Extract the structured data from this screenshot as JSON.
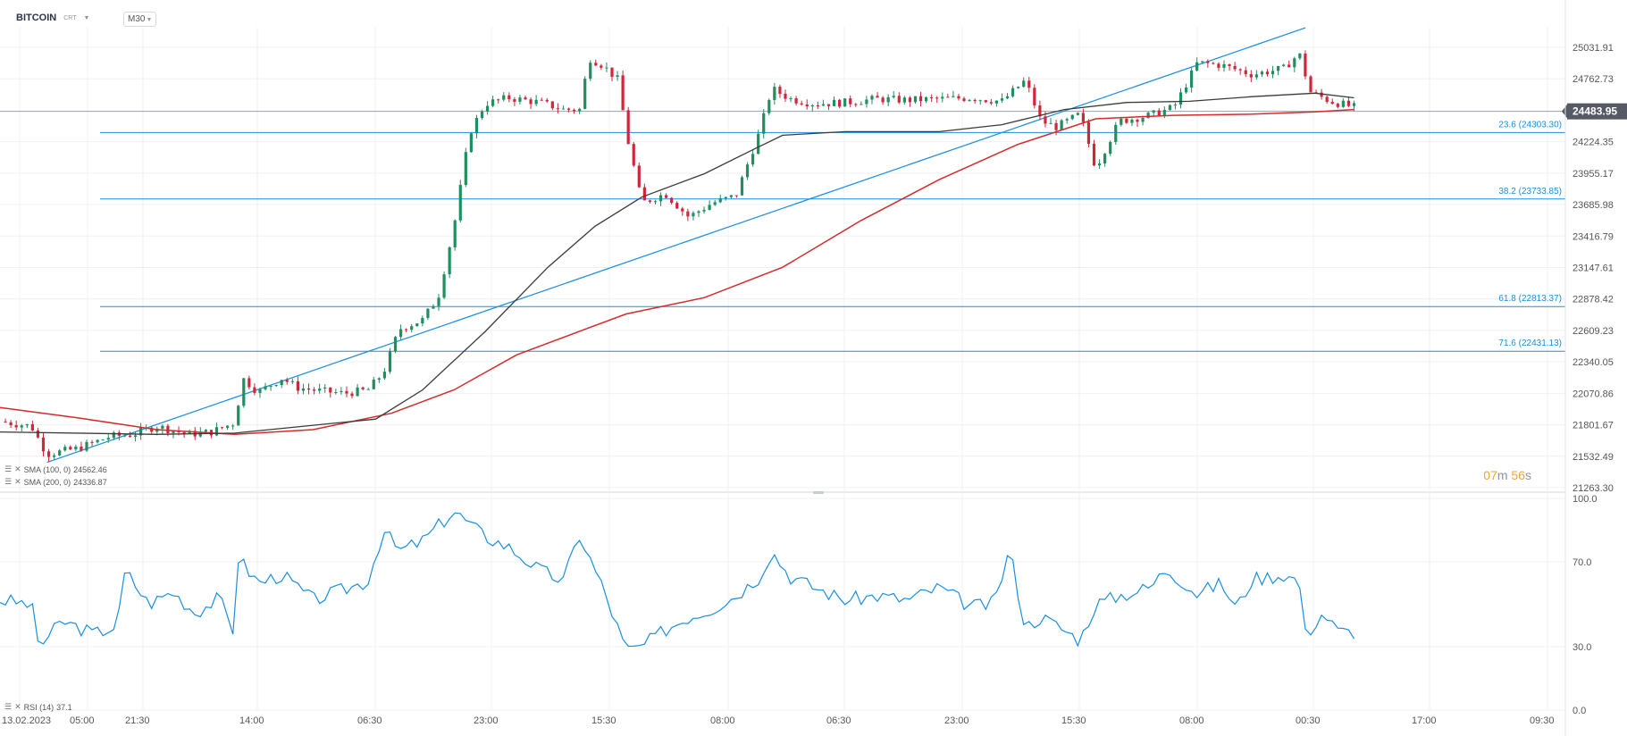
{
  "header": {
    "symbol": "BITCOIN",
    "type": "CRT",
    "timeframe": "M30"
  },
  "timer": {
    "minutes": "07",
    "minutes_unit": "m",
    "seconds": "56",
    "seconds_unit": "s"
  },
  "colors": {
    "up": "#1f8f5f",
    "down": "#d0263b",
    "sma100": "#3a3a3a",
    "sma200": "#d42b2b",
    "fib": "#1a8fe0",
    "rsi": "#1a8fe0",
    "price_tag": "#555a64"
  },
  "indicators": [
    {
      "label": "SMA (100, 0)",
      "value": "24562.46"
    },
    {
      "label": "SMA (200, 0)",
      "value": "24336.87"
    }
  ],
  "oscillator": {
    "label": "RSI (14)",
    "value": "37.1"
  },
  "chart_data": [
    {
      "type": "candlestick",
      "title": "BITCOIN",
      "timeframe": "M30",
      "ylim": [
        21263.3,
        25300
      ],
      "y_ticks": [
        "25031.91",
        "24762.73",
        "24224.35",
        "23955.17",
        "23685.98",
        "23416.79",
        "23147.61",
        "22878.42",
        "22609.23",
        "22340.05",
        "22070.86",
        "21801.67",
        "21532.49",
        "21263.30"
      ],
      "x_ticks": [
        "13.02.2023",
        "05:00",
        "21:30",
        "14:00",
        "06:30",
        "23:00",
        "15:30",
        "08:00",
        "06:30",
        "23:00",
        "15:30",
        "08:00",
        "00:30",
        "17:00",
        "09:30"
      ],
      "current_price": "24483.95",
      "fibonacci_levels": [
        {
          "label": "23.6 (24303.30)",
          "value": 24303.3
        },
        {
          "label": "38.2 (23733.85)",
          "value": 23733.85
        },
        {
          "label": "61.8 (22813.37)",
          "value": 22813.37
        },
        {
          "label": "71.6 (22431.13)",
          "value": 22431.13
        }
      ],
      "trendline": [
        [
          0.03,
          21480
        ],
        [
          0.834,
          25200
        ]
      ],
      "price_path": [
        [
          0,
          21830
        ],
        [
          0.02,
          21790
        ],
        [
          0.03,
          21550
        ],
        [
          0.05,
          21600
        ],
        [
          0.07,
          21700
        ],
        [
          0.085,
          21720
        ],
        [
          0.1,
          21790
        ],
        [
          0.12,
          21720
        ],
        [
          0.135,
          21740
        ],
        [
          0.15,
          21820
        ],
        [
          0.155,
          22200
        ],
        [
          0.165,
          22080
        ],
        [
          0.18,
          22200
        ],
        [
          0.19,
          22120
        ],
        [
          0.205,
          22090
        ],
        [
          0.22,
          22070
        ],
        [
          0.235,
          22100
        ],
        [
          0.245,
          22250
        ],
        [
          0.255,
          22620
        ],
        [
          0.27,
          22700
        ],
        [
          0.28,
          22900
        ],
        [
          0.29,
          23500
        ],
        [
          0.3,
          24300
        ],
        [
          0.31,
          24550
        ],
        [
          0.325,
          24600
        ],
        [
          0.345,
          24560
        ],
        [
          0.36,
          24500
        ],
        [
          0.372,
          24500
        ],
        [
          0.375,
          24950
        ],
        [
          0.385,
          24880
        ],
        [
          0.395,
          24750
        ],
        [
          0.4,
          24300
        ],
        [
          0.41,
          23700
        ],
        [
          0.425,
          23780
        ],
        [
          0.44,
          23580
        ],
        [
          0.455,
          23700
        ],
        [
          0.47,
          23760
        ],
        [
          0.485,
          24300
        ],
        [
          0.493,
          24680
        ],
        [
          0.505,
          24590
        ],
        [
          0.52,
          24550
        ],
        [
          0.54,
          24560
        ],
        [
          0.56,
          24590
        ],
        [
          0.58,
          24580
        ],
        [
          0.6,
          24590
        ],
        [
          0.62,
          24600
        ],
        [
          0.64,
          24570
        ],
        [
          0.655,
          24750
        ],
        [
          0.665,
          24400
        ],
        [
          0.675,
          24350
        ],
        [
          0.69,
          24460
        ],
        [
          0.7,
          24000
        ],
        [
          0.715,
          24400
        ],
        [
          0.735,
          24450
        ],
        [
          0.75,
          24520
        ],
        [
          0.765,
          24900
        ],
        [
          0.78,
          24880
        ],
        [
          0.8,
          24800
        ],
        [
          0.82,
          24850
        ],
        [
          0.83,
          24980
        ],
        [
          0.837,
          24650
        ],
        [
          0.85,
          24570
        ],
        [
          0.865,
          24520
        ]
      ],
      "series": [
        {
          "name": "SMA (100, 0)",
          "path": [
            [
              0,
              21740
            ],
            [
              0.1,
              21720
            ],
            [
              0.15,
              21730
            ],
            [
              0.24,
              21850
            ],
            [
              0.27,
              22100
            ],
            [
              0.31,
              22600
            ],
            [
              0.35,
              23150
            ],
            [
              0.38,
              23500
            ],
            [
              0.41,
              23750
            ],
            [
              0.45,
              23950
            ],
            [
              0.48,
              24150
            ],
            [
              0.5,
              24280
            ],
            [
              0.54,
              24310
            ],
            [
              0.6,
              24310
            ],
            [
              0.64,
              24370
            ],
            [
              0.68,
              24500
            ],
            [
              0.72,
              24560
            ],
            [
              0.76,
              24570
            ],
            [
              0.8,
              24610
            ],
            [
              0.84,
              24640
            ],
            [
              0.865,
              24600
            ]
          ]
        },
        {
          "name": "SMA (200, 0)",
          "path": [
            [
              0,
              21950
            ],
            [
              0.05,
              21860
            ],
            [
              0.1,
              21760
            ],
            [
              0.15,
              21720
            ],
            [
              0.2,
              21760
            ],
            [
              0.25,
              21900
            ],
            [
              0.29,
              22100
            ],
            [
              0.33,
              22400
            ],
            [
              0.37,
              22600
            ],
            [
              0.4,
              22750
            ],
            [
              0.45,
              22890
            ],
            [
              0.5,
              23150
            ],
            [
              0.55,
              23550
            ],
            [
              0.6,
              23900
            ],
            [
              0.65,
              24200
            ],
            [
              0.7,
              24420
            ],
            [
              0.75,
              24450
            ],
            [
              0.8,
              24460
            ],
            [
              0.84,
              24480
            ],
            [
              0.865,
              24500
            ]
          ]
        }
      ]
    },
    {
      "type": "line",
      "title": "RSI (14)",
      "ylim": [
        0,
        100
      ],
      "y_ticks": [
        "100.0",
        "70.0",
        "30.0",
        "0.0"
      ],
      "path": [
        [
          0,
          52
        ],
        [
          0.02,
          50
        ],
        [
          0.025,
          30
        ],
        [
          0.04,
          42
        ],
        [
          0.06,
          36
        ],
        [
          0.075,
          40
        ],
        [
          0.08,
          66
        ],
        [
          0.095,
          50
        ],
        [
          0.11,
          56
        ],
        [
          0.125,
          46
        ],
        [
          0.14,
          53
        ],
        [
          0.15,
          36
        ],
        [
          0.152,
          72
        ],
        [
          0.165,
          60
        ],
        [
          0.18,
          64
        ],
        [
          0.2,
          52
        ],
        [
          0.22,
          57
        ],
        [
          0.235,
          61
        ],
        [
          0.245,
          85
        ],
        [
          0.255,
          75
        ],
        [
          0.27,
          80
        ],
        [
          0.29,
          94
        ],
        [
          0.31,
          82
        ],
        [
          0.325,
          77
        ],
        [
          0.345,
          66
        ],
        [
          0.36,
          61
        ],
        [
          0.37,
          83
        ],
        [
          0.385,
          58
        ],
        [
          0.4,
          28
        ],
        [
          0.41,
          30
        ],
        [
          0.425,
          38
        ],
        [
          0.44,
          44
        ],
        [
          0.455,
          48
        ],
        [
          0.47,
          54
        ],
        [
          0.485,
          63
        ],
        [
          0.493,
          75
        ],
        [
          0.505,
          63
        ],
        [
          0.52,
          58
        ],
        [
          0.54,
          52
        ],
        [
          0.56,
          54
        ],
        [
          0.58,
          52
        ],
        [
          0.6,
          58
        ],
        [
          0.62,
          49
        ],
        [
          0.635,
          50
        ],
        [
          0.645,
          76
        ],
        [
          0.655,
          39
        ],
        [
          0.665,
          44
        ],
        [
          0.675,
          40
        ],
        [
          0.69,
          33
        ],
        [
          0.7,
          50
        ],
        [
          0.715,
          54
        ],
        [
          0.735,
          58
        ],
        [
          0.745,
          67
        ],
        [
          0.765,
          55
        ],
        [
          0.78,
          60
        ],
        [
          0.79,
          48
        ],
        [
          0.8,
          62
        ],
        [
          0.82,
          64
        ],
        [
          0.83,
          61
        ],
        [
          0.834,
          35
        ],
        [
          0.845,
          46
        ],
        [
          0.855,
          37
        ],
        [
          0.865,
          37
        ]
      ]
    }
  ]
}
